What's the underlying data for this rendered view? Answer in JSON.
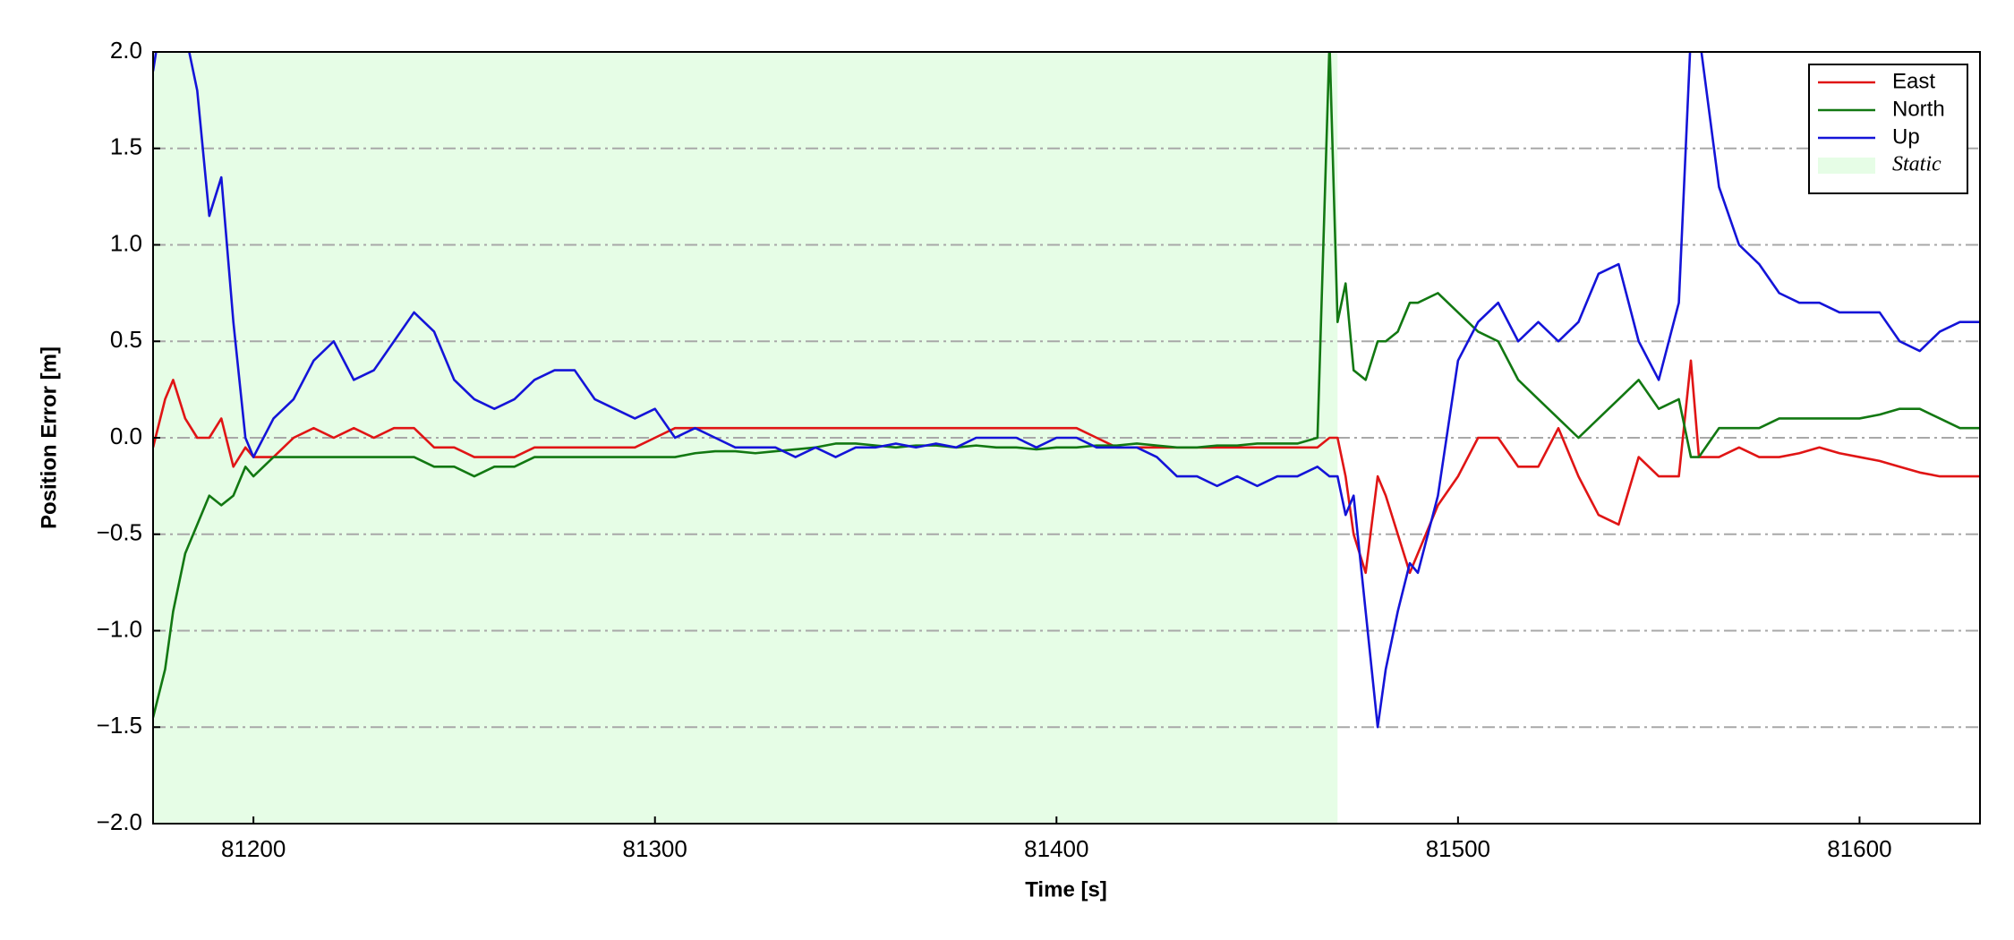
{
  "chart_data": {
    "type": "line",
    "x_label": "Time [s]",
    "y_label": "Position Error [m]",
    "x": [
      81175,
      81178,
      81180,
      81183,
      81186,
      81189,
      81192,
      81195,
      81198,
      81200,
      81205,
      81210,
      81215,
      81220,
      81225,
      81230,
      81235,
      81240,
      81245,
      81250,
      81255,
      81260,
      81265,
      81270,
      81275,
      81280,
      81285,
      81290,
      81295,
      81300,
      81305,
      81310,
      81315,
      81320,
      81325,
      81330,
      81335,
      81340,
      81345,
      81350,
      81355,
      81360,
      81365,
      81370,
      81375,
      81380,
      81385,
      81390,
      81395,
      81400,
      81405,
      81410,
      81415,
      81420,
      81425,
      81430,
      81435,
      81440,
      81445,
      81450,
      81455,
      81460,
      81465,
      81468,
      81470,
      81472,
      81474,
      81477,
      81480,
      81482,
      81485,
      81488,
      81490,
      81495,
      81500,
      81505,
      81510,
      81515,
      81520,
      81525,
      81530,
      81535,
      81540,
      81545,
      81550,
      81555,
      81558,
      81560,
      81565,
      81570,
      81575,
      81580,
      81585,
      81590,
      81595,
      81600,
      81605,
      81610,
      81615,
      81620,
      81625,
      81630
    ],
    "series": [
      {
        "name": "East",
        "color": "#e01515",
        "values": [
          -0.05,
          0.2,
          0.3,
          0.1,
          0.0,
          0.0,
          0.1,
          -0.15,
          -0.05,
          -0.1,
          -0.1,
          0.0,
          0.05,
          0.0,
          0.05,
          0.0,
          0.05,
          0.05,
          -0.05,
          -0.05,
          -0.1,
          -0.1,
          -0.1,
          -0.05,
          -0.05,
          -0.05,
          -0.05,
          -0.05,
          -0.05,
          0.0,
          0.05,
          0.05,
          0.05,
          0.05,
          0.05,
          0.05,
          0.05,
          0.05,
          0.05,
          0.05,
          0.05,
          0.05,
          0.05,
          0.05,
          0.05,
          0.05,
          0.05,
          0.05,
          0.05,
          0.05,
          0.05,
          0.0,
          -0.05,
          -0.05,
          -0.05,
          -0.05,
          -0.05,
          -0.05,
          -0.05,
          -0.05,
          -0.05,
          -0.05,
          -0.05,
          0.0,
          0.0,
          -0.2,
          -0.5,
          -0.7,
          -0.2,
          -0.3,
          -0.5,
          -0.7,
          -0.6,
          -0.35,
          -0.2,
          0.0,
          0.0,
          -0.15,
          -0.15,
          0.05,
          -0.2,
          -0.4,
          -0.45,
          -0.1,
          -0.2,
          -0.2,
          0.4,
          -0.1,
          -0.1,
          -0.05,
          -0.1,
          -0.1,
          -0.08,
          -0.05,
          -0.08,
          -0.1,
          -0.12,
          -0.15,
          -0.18,
          -0.2,
          -0.2,
          -0.2
        ]
      },
      {
        "name": "North",
        "color": "#127812",
        "values": [
          -1.45,
          -1.2,
          -0.9,
          -0.6,
          -0.45,
          -0.3,
          -0.35,
          -0.3,
          -0.15,
          -0.2,
          -0.1,
          -0.1,
          -0.1,
          -0.1,
          -0.1,
          -0.1,
          -0.1,
          -0.1,
          -0.15,
          -0.15,
          -0.2,
          -0.15,
          -0.15,
          -0.1,
          -0.1,
          -0.1,
          -0.1,
          -0.1,
          -0.1,
          -0.1,
          -0.1,
          -0.08,
          -0.07,
          -0.07,
          -0.08,
          -0.07,
          -0.06,
          -0.05,
          -0.03,
          -0.03,
          -0.04,
          -0.05,
          -0.04,
          -0.04,
          -0.05,
          -0.04,
          -0.05,
          -0.05,
          -0.06,
          -0.05,
          -0.05,
          -0.04,
          -0.04,
          -0.03,
          -0.04,
          -0.05,
          -0.05,
          -0.04,
          -0.04,
          -0.03,
          -0.03,
          -0.03,
          0.0,
          2.05,
          0.6,
          0.8,
          0.35,
          0.3,
          0.5,
          0.5,
          0.55,
          0.7,
          0.7,
          0.75,
          0.65,
          0.55,
          0.5,
          0.3,
          0.2,
          0.1,
          0.0,
          0.1,
          0.2,
          0.3,
          0.15,
          0.2,
          -0.1,
          -0.1,
          0.05,
          0.05,
          0.05,
          0.1,
          0.1,
          0.1,
          0.1,
          0.1,
          0.12,
          0.15,
          0.15,
          0.1,
          0.05,
          0.05
        ]
      },
      {
        "name": "Up",
        "color": "#1414d8",
        "values": [
          1.9,
          2.3,
          2.3,
          2.1,
          1.8,
          1.15,
          1.35,
          0.6,
          0.0,
          -0.1,
          0.1,
          0.2,
          0.4,
          0.5,
          0.3,
          0.35,
          0.5,
          0.65,
          0.55,
          0.3,
          0.2,
          0.15,
          0.2,
          0.3,
          0.35,
          0.35,
          0.2,
          0.15,
          0.1,
          0.15,
          0.0,
          0.05,
          0.0,
          -0.05,
          -0.05,
          -0.05,
          -0.1,
          -0.05,
          -0.1,
          -0.05,
          -0.05,
          -0.03,
          -0.05,
          -0.03,
          -0.05,
          0.0,
          0.0,
          0.0,
          -0.05,
          0.0,
          0.0,
          -0.05,
          -0.05,
          -0.05,
          -0.1,
          -0.2,
          -0.2,
          -0.25,
          -0.2,
          -0.25,
          -0.2,
          -0.2,
          -0.15,
          -0.2,
          -0.2,
          -0.4,
          -0.3,
          -0.9,
          -1.5,
          -1.2,
          -0.9,
          -0.65,
          -0.7,
          -0.3,
          0.4,
          0.6,
          0.7,
          0.5,
          0.6,
          0.5,
          0.6,
          0.85,
          0.9,
          0.5,
          0.3,
          0.7,
          2.1,
          2.1,
          1.3,
          1.0,
          0.9,
          0.75,
          0.7,
          0.7,
          0.65,
          0.65,
          0.65,
          0.5,
          0.45,
          0.55,
          0.6,
          0.6
        ]
      }
    ],
    "shaded_regions": [
      {
        "name": "Static",
        "start": 81175,
        "end": 81470,
        "color": "#e6fde6"
      }
    ],
    "xlim": [
      81175,
      81630
    ],
    "xticks": [
      81200,
      81300,
      81400,
      81500,
      81600
    ],
    "ylim": [
      -2,
      2
    ],
    "yticks": [
      {
        "value": -2,
        "label": "−2.0"
      },
      {
        "value": -1.5,
        "label": "−1.5"
      },
      {
        "value": -1,
        "label": "−1.0"
      },
      {
        "value": -0.5,
        "label": "−0.5"
      },
      {
        "value": 0,
        "label": "0.0"
      },
      {
        "value": 0.5,
        "label": "0.5"
      },
      {
        "value": 1,
        "label": "1.0"
      },
      {
        "value": 1.5,
        "label": "1.5"
      },
      {
        "value": 2,
        "label": "2.0"
      }
    ],
    "grid": true,
    "legend": "upper right"
  }
}
